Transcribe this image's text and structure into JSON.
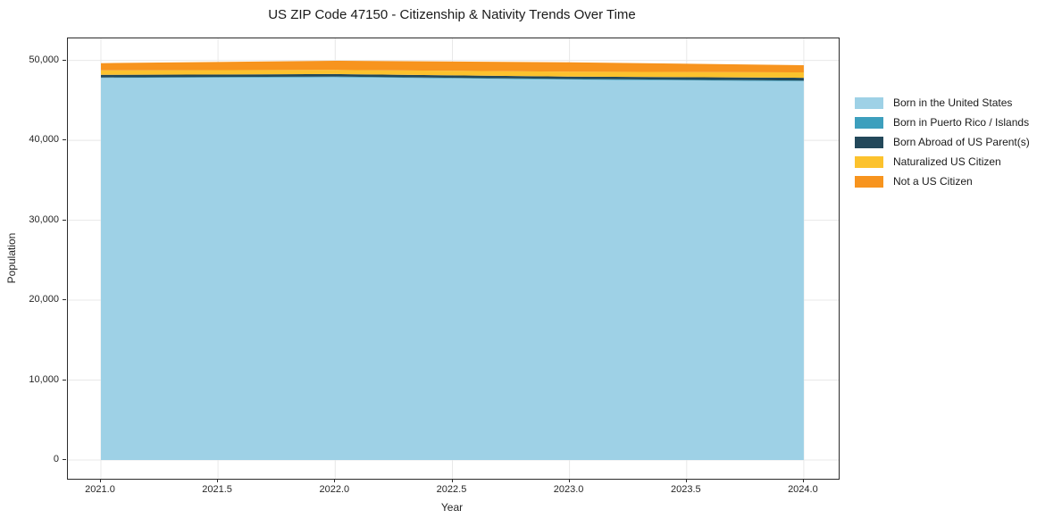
{
  "chart_data": {
    "type": "area",
    "stacked": true,
    "title": "US ZIP Code 47150 - Citizenship & Nativity Trends Over Time",
    "xlabel": "Year",
    "ylabel": "Population",
    "grid": true,
    "legend_position": "right-outside",
    "x": [
      2021,
      2022,
      2023,
      2024
    ],
    "series": [
      {
        "name": "Born in the United States",
        "color": "#9ed1e6",
        "values": [
          47800,
          47900,
          47600,
          47400
        ]
      },
      {
        "name": "Born in Puerto Rico / Islands",
        "color": "#3d9fbd",
        "values": [
          70,
          75,
          80,
          70
        ]
      },
      {
        "name": "Born Abroad of US Parent(s)",
        "color": "#23485a",
        "values": [
          320,
          310,
          290,
          350
        ]
      },
      {
        "name": "Naturalized US Citizen",
        "color": "#fcc22d",
        "values": [
          560,
          520,
          620,
          680
        ]
      },
      {
        "name": "Not a US Citizen",
        "color": "#f7941e",
        "values": [
          900,
          1150,
          1180,
          900
        ]
      }
    ],
    "totals": [
      49650,
      49955,
      49770,
      49400
    ],
    "xlim": [
      2020.859,
      2024.149
    ],
    "ylim": [
      -2350,
      52750
    ],
    "x_ticks": {
      "values": [
        2021.0,
        2021.5,
        2022.0,
        2022.5,
        2023.0,
        2023.5,
        2024.0
      ],
      "labels": [
        "2021.0",
        "2021.5",
        "2022.0",
        "2022.5",
        "2023.0",
        "2023.5",
        "2024.0"
      ]
    },
    "y_ticks": {
      "values": [
        0,
        10000,
        20000,
        30000,
        40000,
        50000
      ],
      "labels": [
        "0",
        "10,000",
        "20,000",
        "30,000",
        "40,000",
        "50,000"
      ]
    },
    "grid_color": "#e8e8e8"
  }
}
